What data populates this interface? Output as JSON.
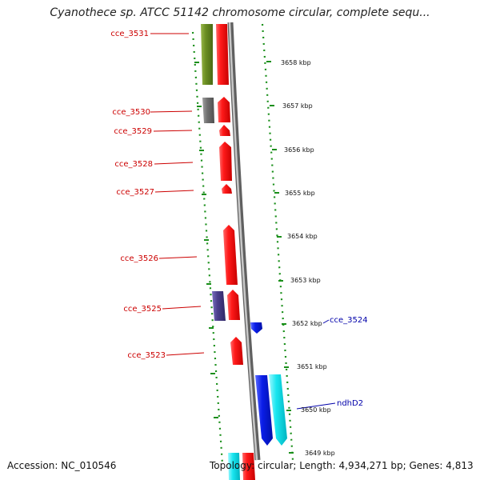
{
  "map": {
    "title": "Cyanothece sp. ATCC 51142 chromosome circular, complete sequ...",
    "accession": "Accession: NC_010546",
    "summary": "Topology: circular; Length: 4,934,271 bp; Genes: 4,813"
  },
  "colors": {
    "red_gene": "#e8001c",
    "olive_gene": "#6b8e23",
    "gray_gene": "#707070",
    "purple_gene": "#4b3f8c",
    "blue_gene": "#0a1de8",
    "cyan_gene": "#19e6f0",
    "left_label": "#cc0000",
    "right_label": "#0000aa",
    "ticks": "#1a8f1a",
    "backbone": "#808080"
  },
  "scale_ticks": [
    "3658 kbp",
    "3657 kbp",
    "3656 kbp",
    "3655 kbp",
    "3654 kbp",
    "3653 kbp",
    "3652 kbp",
    "3651 kbp",
    "3650 kbp",
    "3649 kbp"
  ],
  "left_genes": [
    "cce_3531",
    "cce_3530",
    "cce_3529",
    "cce_3528",
    "cce_3527",
    "cce_3526",
    "cce_3525",
    "cce_3523"
  ],
  "right_genes": [
    "cce_3524",
    "ndhD2"
  ]
}
